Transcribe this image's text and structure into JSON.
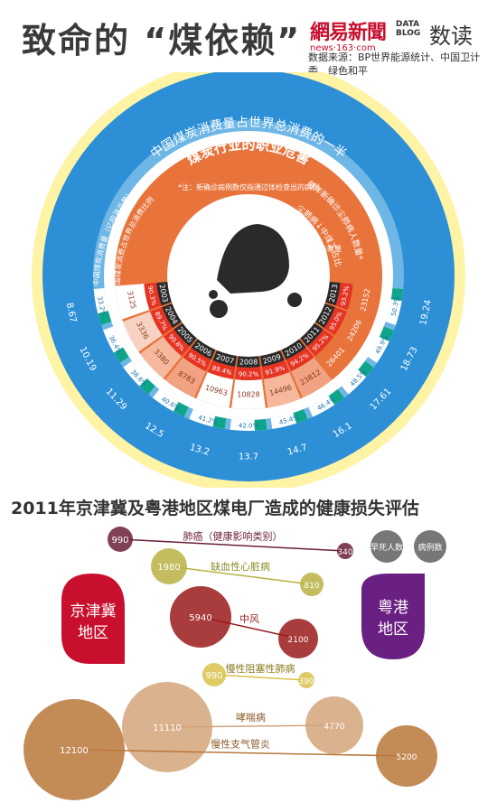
{
  "header": {
    "title": "致命的 “煤依赖”",
    "netease_logo": "網易新聞",
    "netease_url": "news·163·com",
    "datablog_logo": "DATA BLOG",
    "shudu_logo": "数读",
    "source": "数据来源：BP世界能源统计、中国卫计委、绿色和平"
  },
  "wheel": {
    "outer_label": "中国煤炭消费量占世界总消费的一半",
    "left_label_1": "中国煤炭消费量（亿吨油当量）",
    "left_label_2": "中国煤炭消费占世界总消费比例",
    "inner_title": "煤炭行业的职业危害",
    "inner_note": "*注：新确诊病例数仅指通过体检查出的病例",
    "right_label_1": "每年新确诊尘肺病人数量*",
    "right_label_2": "尘肺病↓中煤工占比",
    "right_label_3": "不代表实际数量",
    "colors": {
      "outer_blue": "#2d8fd6",
      "mid_blue": "#6db6e6",
      "teal": "#0fa58a",
      "cream": "#fff3a6",
      "orange": "#e8743c",
      "pink": "#f5b89c",
      "red": "#e63323",
      "black": "#2a2a2a"
    },
    "years": [
      "2003",
      "2004",
      "2005",
      "2006",
      "2007",
      "2008",
      "2009",
      "2010",
      "2011",
      "2012",
      "2013"
    ],
    "consumption": [
      "8.67",
      "10.19",
      "11.29",
      "12.5",
      "13.2",
      "13.7",
      "14.7",
      "16.1",
      "17.61",
      "18.73",
      "19.24"
    ],
    "share": [
      "33.2%",
      "36.4%",
      "38.6%",
      "40.6%",
      "41.2%",
      "42.0%",
      "45.4%",
      "46.4%",
      "48.5%",
      "49.9%",
      "50.3%"
    ],
    "cases": [
      "3125",
      "3336",
      "3380",
      "8783",
      "10963",
      "10828",
      "14496",
      "23812",
      "26401",
      "24206",
      "23152"
    ],
    "miner_share": [
      "90.3%",
      "89.7%",
      "90.8%",
      "90.5%",
      "89.4%",
      "90.2%",
      "91.9%",
      "94.2%",
      "95.2%",
      "95.0%",
      "93.2%"
    ]
  },
  "section2": {
    "title": "2011年京津冀及粤港地区煤电厂造成的健康损失评估",
    "jingjinji": "京津冀地区",
    "yuegang": "粤港地区",
    "legend_early_death": "早死人数",
    "legend_cases": "病例数",
    "diseases": [
      {
        "name": "肺癌（健康影响类别）",
        "left": "990",
        "right": "340"
      },
      {
        "name": "缺血性心脏病",
        "left": "1980",
        "right": "810"
      },
      {
        "name": "中风",
        "left": "5940",
        "right": "2100"
      },
      {
        "name": "慢性阻塞性肺病",
        "left": "990",
        "right": "390"
      },
      {
        "name": "哮喘病",
        "left": "11110",
        "right": "4770"
      },
      {
        "name": "慢性支气管炎",
        "left": "12100",
        "right": "5200"
      }
    ]
  }
}
